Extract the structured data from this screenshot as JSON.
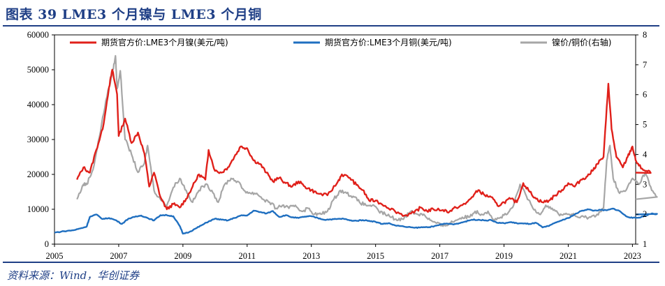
{
  "header": {
    "title": "图表 39  LME3 个月镍与 LME3 个月铜"
  },
  "footer": {
    "source": "资料来源：Wind，华创证券"
  },
  "chart_data": {
    "type": "line",
    "title": "图表 39  LME3 个月镍与 LME3 个月铜",
    "x_ticks": [
      "2005",
      "2007",
      "2009",
      "2011",
      "2013",
      "2015",
      "2017",
      "2019",
      "2021",
      "2023"
    ],
    "xlim": [
      2005.0,
      2023.1
    ],
    "y_left": {
      "ticks": [
        0,
        10000,
        20000,
        30000,
        40000,
        50000,
        60000
      ],
      "lim": [
        0,
        60000
      ]
    },
    "y_right": {
      "ticks": [
        1,
        2,
        3,
        4,
        5,
        6,
        7,
        8
      ],
      "lim": [
        1,
        8
      ]
    },
    "legend_position": "top",
    "series": [
      {
        "name": "期货官方价:LME3个月镍(美元/吨)",
        "axis": "left",
        "color": "#e0201a",
        "points": [
          [
            2005.7,
            18500
          ],
          [
            2005.9,
            22000
          ],
          [
            2006.1,
            20500
          ],
          [
            2006.3,
            27000
          ],
          [
            2006.5,
            33000
          ],
          [
            2006.7,
            45000
          ],
          [
            2006.8,
            50000
          ],
          [
            2006.95,
            43000
          ],
          [
            2007.0,
            31000
          ],
          [
            2007.2,
            36000
          ],
          [
            2007.4,
            29000
          ],
          [
            2007.6,
            32000
          ],
          [
            2007.8,
            26000
          ],
          [
            2007.95,
            16500
          ],
          [
            2008.1,
            20500
          ],
          [
            2008.3,
            13500
          ],
          [
            2008.5,
            10000
          ],
          [
            2008.7,
            11500
          ],
          [
            2008.9,
            10500
          ],
          [
            2009.1,
            13000
          ],
          [
            2009.3,
            16500
          ],
          [
            2009.5,
            20000
          ],
          [
            2009.7,
            18500
          ],
          [
            2009.8,
            27000
          ],
          [
            2010.0,
            21000
          ],
          [
            2010.2,
            20500
          ],
          [
            2010.4,
            22000
          ],
          [
            2010.6,
            25000
          ],
          [
            2010.8,
            28000
          ],
          [
            2011.0,
            27500
          ],
          [
            2011.2,
            24000
          ],
          [
            2011.4,
            23000
          ],
          [
            2011.6,
            20500
          ],
          [
            2011.8,
            18000
          ],
          [
            2012.0,
            19000
          ],
          [
            2012.2,
            17500
          ],
          [
            2012.4,
            16500
          ],
          [
            2012.6,
            18000
          ],
          [
            2012.8,
            16500
          ],
          [
            2013.0,
            15500
          ],
          [
            2013.2,
            14500
          ],
          [
            2013.5,
            14000
          ],
          [
            2013.8,
            17500
          ],
          [
            2013.95,
            20000
          ],
          [
            2014.2,
            19000
          ],
          [
            2014.4,
            17000
          ],
          [
            2014.6,
            15500
          ],
          [
            2014.8,
            12500
          ],
          [
            2015.0,
            12500
          ],
          [
            2015.3,
            11000
          ],
          [
            2015.6,
            9500
          ],
          [
            2015.9,
            8200
          ],
          [
            2016.2,
            9000
          ],
          [
            2016.4,
            10500
          ],
          [
            2016.6,
            9500
          ],
          [
            2016.8,
            10000
          ],
          [
            2017.1,
            9800
          ],
          [
            2017.3,
            9300
          ],
          [
            2017.5,
            10500
          ],
          [
            2017.8,
            11500
          ],
          [
            2018.0,
            13500
          ],
          [
            2018.2,
            15500
          ],
          [
            2018.4,
            14000
          ],
          [
            2018.6,
            13500
          ],
          [
            2018.8,
            11000
          ],
          [
            2019.0,
            12000
          ],
          [
            2019.2,
            13000
          ],
          [
            2019.4,
            12000
          ],
          [
            2019.6,
            17500
          ],
          [
            2019.8,
            15000
          ],
          [
            2020.0,
            13000
          ],
          [
            2020.2,
            12000
          ],
          [
            2020.4,
            12500
          ],
          [
            2020.6,
            14000
          ],
          [
            2020.8,
            15500
          ],
          [
            2021.0,
            17500
          ],
          [
            2021.2,
            16500
          ],
          [
            2021.4,
            18500
          ],
          [
            2021.6,
            19500
          ],
          [
            2021.75,
            21000
          ],
          [
            2021.9,
            23000
          ],
          [
            2022.1,
            25000
          ],
          [
            2022.25,
            46000
          ],
          [
            2022.35,
            33000
          ],
          [
            2022.5,
            25000
          ],
          [
            2022.7,
            22000
          ],
          [
            2022.85,
            25000
          ],
          [
            2023.0,
            28000
          ],
          [
            2023.1,
            24000
          ],
          [
            2023.2,
            22500
          ],
          [
            2023.4,
            21000
          ],
          [
            2023.6,
            20500
          ]
        ]
      },
      {
        "name": "期货官方价:LME3个月铜(美元/吨)",
        "axis": "left",
        "color": "#1f6fc0",
        "points": [
          [
            2005.0,
            3300
          ],
          [
            2005.3,
            3700
          ],
          [
            2005.6,
            4000
          ],
          [
            2005.8,
            4500
          ],
          [
            2006.0,
            5000
          ],
          [
            2006.1,
            7800
          ],
          [
            2006.3,
            8500
          ],
          [
            2006.5,
            7200
          ],
          [
            2006.7,
            7500
          ],
          [
            2006.9,
            6900
          ],
          [
            2007.1,
            5800
          ],
          [
            2007.3,
            7300
          ],
          [
            2007.5,
            7800
          ],
          [
            2007.7,
            8200
          ],
          [
            2007.9,
            7500
          ],
          [
            2008.1,
            6800
          ],
          [
            2008.3,
            8300
          ],
          [
            2008.5,
            8300
          ],
          [
            2008.7,
            8000
          ],
          [
            2008.9,
            5200
          ],
          [
            2009.0,
            3000
          ],
          [
            2009.2,
            3500
          ],
          [
            2009.4,
            4500
          ],
          [
            2009.6,
            5500
          ],
          [
            2009.8,
            6500
          ],
          [
            2010.0,
            7300
          ],
          [
            2010.2,
            7000
          ],
          [
            2010.4,
            6800
          ],
          [
            2010.6,
            7500
          ],
          [
            2010.8,
            8200
          ],
          [
            2011.0,
            8200
          ],
          [
            2011.2,
            9600
          ],
          [
            2011.4,
            9200
          ],
          [
            2011.6,
            8800
          ],
          [
            2011.8,
            9500
          ],
          [
            2012.0,
            7800
          ],
          [
            2012.2,
            8300
          ],
          [
            2012.4,
            7700
          ],
          [
            2012.6,
            7500
          ],
          [
            2012.8,
            7900
          ],
          [
            2013.0,
            8000
          ],
          [
            2013.2,
            7500
          ],
          [
            2013.4,
            7000
          ],
          [
            2013.6,
            7100
          ],
          [
            2013.8,
            7200
          ],
          [
            2014.0,
            7300
          ],
          [
            2014.2,
            6800
          ],
          [
            2014.4,
            6700
          ],
          [
            2014.6,
            6900
          ],
          [
            2014.8,
            6700
          ],
          [
            2015.0,
            6400
          ],
          [
            2015.2,
            5800
          ],
          [
            2015.4,
            6000
          ],
          [
            2015.6,
            5400
          ],
          [
            2015.9,
            5000
          ],
          [
            2016.2,
            4700
          ],
          [
            2016.4,
            4800
          ],
          [
            2016.6,
            4900
          ],
          [
            2016.8,
            5000
          ],
          [
            2017.0,
            5600
          ],
          [
            2017.2,
            5900
          ],
          [
            2017.4,
            5700
          ],
          [
            2017.6,
            6000
          ],
          [
            2017.8,
            6500
          ],
          [
            2018.0,
            7000
          ],
          [
            2018.2,
            7000
          ],
          [
            2018.4,
            6800
          ],
          [
            2018.6,
            6900
          ],
          [
            2018.8,
            6100
          ],
          [
            2019.0,
            6000
          ],
          [
            2019.2,
            6300
          ],
          [
            2019.4,
            6000
          ],
          [
            2019.6,
            5900
          ],
          [
            2019.8,
            5800
          ],
          [
            2020.0,
            6100
          ],
          [
            2020.2,
            4800
          ],
          [
            2020.4,
            5200
          ],
          [
            2020.6,
            6200
          ],
          [
            2020.8,
            6800
          ],
          [
            2021.0,
            7500
          ],
          [
            2021.2,
            8500
          ],
          [
            2021.4,
            9500
          ],
          [
            2021.6,
            10000
          ],
          [
            2021.8,
            9600
          ],
          [
            2022.0,
            9800
          ],
          [
            2022.2,
            9700
          ],
          [
            2022.4,
            10200
          ],
          [
            2022.6,
            9500
          ],
          [
            2022.8,
            8000
          ],
          [
            2023.0,
            7500
          ],
          [
            2023.2,
            7600
          ],
          [
            2023.4,
            8200
          ],
          [
            2023.6,
            8800
          ],
          [
            2023.8,
            8500
          ]
        ]
      },
      {
        "name": "镍价/铜价(右轴)",
        "axis": "right",
        "color": "#a6a6a6",
        "points": [
          [
            2005.7,
            2.5
          ],
          [
            2005.9,
            3.0
          ],
          [
            2006.0,
            3.0
          ],
          [
            2006.2,
            3.5
          ],
          [
            2006.4,
            4.6
          ],
          [
            2006.6,
            5.8
          ],
          [
            2006.8,
            6.7
          ],
          [
            2006.9,
            7.3
          ],
          [
            2006.95,
            6.2
          ],
          [
            2007.05,
            6.8
          ],
          [
            2007.2,
            4.5
          ],
          [
            2007.4,
            4.0
          ],
          [
            2007.6,
            3.4
          ],
          [
            2007.8,
            3.7
          ],
          [
            2007.9,
            4.3
          ],
          [
            2008.1,
            2.8
          ],
          [
            2008.3,
            2.5
          ],
          [
            2008.5,
            2.3
          ],
          [
            2008.7,
            2.9
          ],
          [
            2008.9,
            3.2
          ],
          [
            2009.1,
            2.8
          ],
          [
            2009.3,
            2.4
          ],
          [
            2009.5,
            2.8
          ],
          [
            2009.7,
            3.0
          ],
          [
            2009.9,
            2.8
          ],
          [
            2010.1,
            2.4
          ],
          [
            2010.3,
            3.0
          ],
          [
            2010.5,
            3.2
          ],
          [
            2010.7,
            3.1
          ],
          [
            2010.9,
            2.8
          ],
          [
            2011.1,
            2.7
          ],
          [
            2011.3,
            2.7
          ],
          [
            2011.5,
            2.5
          ],
          [
            2011.7,
            2.4
          ],
          [
            2011.9,
            2.2
          ],
          [
            2012.1,
            2.3
          ],
          [
            2012.3,
            2.2
          ],
          [
            2012.5,
            2.3
          ],
          [
            2012.7,
            2.1
          ],
          [
            2012.9,
            2.2
          ],
          [
            2013.1,
            2.0
          ],
          [
            2013.3,
            2.0
          ],
          [
            2013.5,
            2.1
          ],
          [
            2013.7,
            2.5
          ],
          [
            2013.9,
            2.8
          ],
          [
            2014.1,
            2.7
          ],
          [
            2014.3,
            2.6
          ],
          [
            2014.5,
            2.4
          ],
          [
            2014.7,
            2.3
          ],
          [
            2014.9,
            2.3
          ],
          [
            2015.1,
            2.1
          ],
          [
            2015.3,
            2.0
          ],
          [
            2015.5,
            1.9
          ],
          [
            2015.7,
            1.8
          ],
          [
            2015.9,
            1.9
          ],
          [
            2016.1,
            2.1
          ],
          [
            2016.3,
            2.0
          ],
          [
            2016.5,
            2.0
          ],
          [
            2016.7,
            1.8
          ],
          [
            2016.9,
            1.7
          ],
          [
            2017.1,
            1.6
          ],
          [
            2017.3,
            1.7
          ],
          [
            2017.5,
            1.8
          ],
          [
            2017.7,
            1.9
          ],
          [
            2017.9,
            1.9
          ],
          [
            2018.1,
            2.1
          ],
          [
            2018.3,
            2.0
          ],
          [
            2018.5,
            2.1
          ],
          [
            2018.7,
            1.8
          ],
          [
            2018.9,
            1.9
          ],
          [
            2019.1,
            2.0
          ],
          [
            2019.3,
            2.3
          ],
          [
            2019.5,
            3.0
          ],
          [
            2019.7,
            2.6
          ],
          [
            2019.9,
            2.2
          ],
          [
            2020.1,
            2.0
          ],
          [
            2020.3,
            2.3
          ],
          [
            2020.5,
            2.2
          ],
          [
            2020.7,
            2.0
          ],
          [
            2020.9,
            2.0
          ],
          [
            2021.1,
            2.0
          ],
          [
            2021.3,
            1.9
          ],
          [
            2021.5,
            1.9
          ],
          [
            2021.7,
            1.9
          ],
          [
            2021.9,
            2.0
          ],
          [
            2022.1,
            2.2
          ],
          [
            2022.2,
            3.8
          ],
          [
            2022.3,
            4.3
          ],
          [
            2022.4,
            3.2
          ],
          [
            2022.6,
            2.7
          ],
          [
            2022.8,
            2.8
          ],
          [
            2023.0,
            3.2
          ],
          [
            2023.2,
            3.0
          ],
          [
            2023.4,
            3.4
          ],
          [
            2023.6,
            2.8
          ],
          [
            2023.8,
            2.5
          ]
        ]
      }
    ]
  }
}
